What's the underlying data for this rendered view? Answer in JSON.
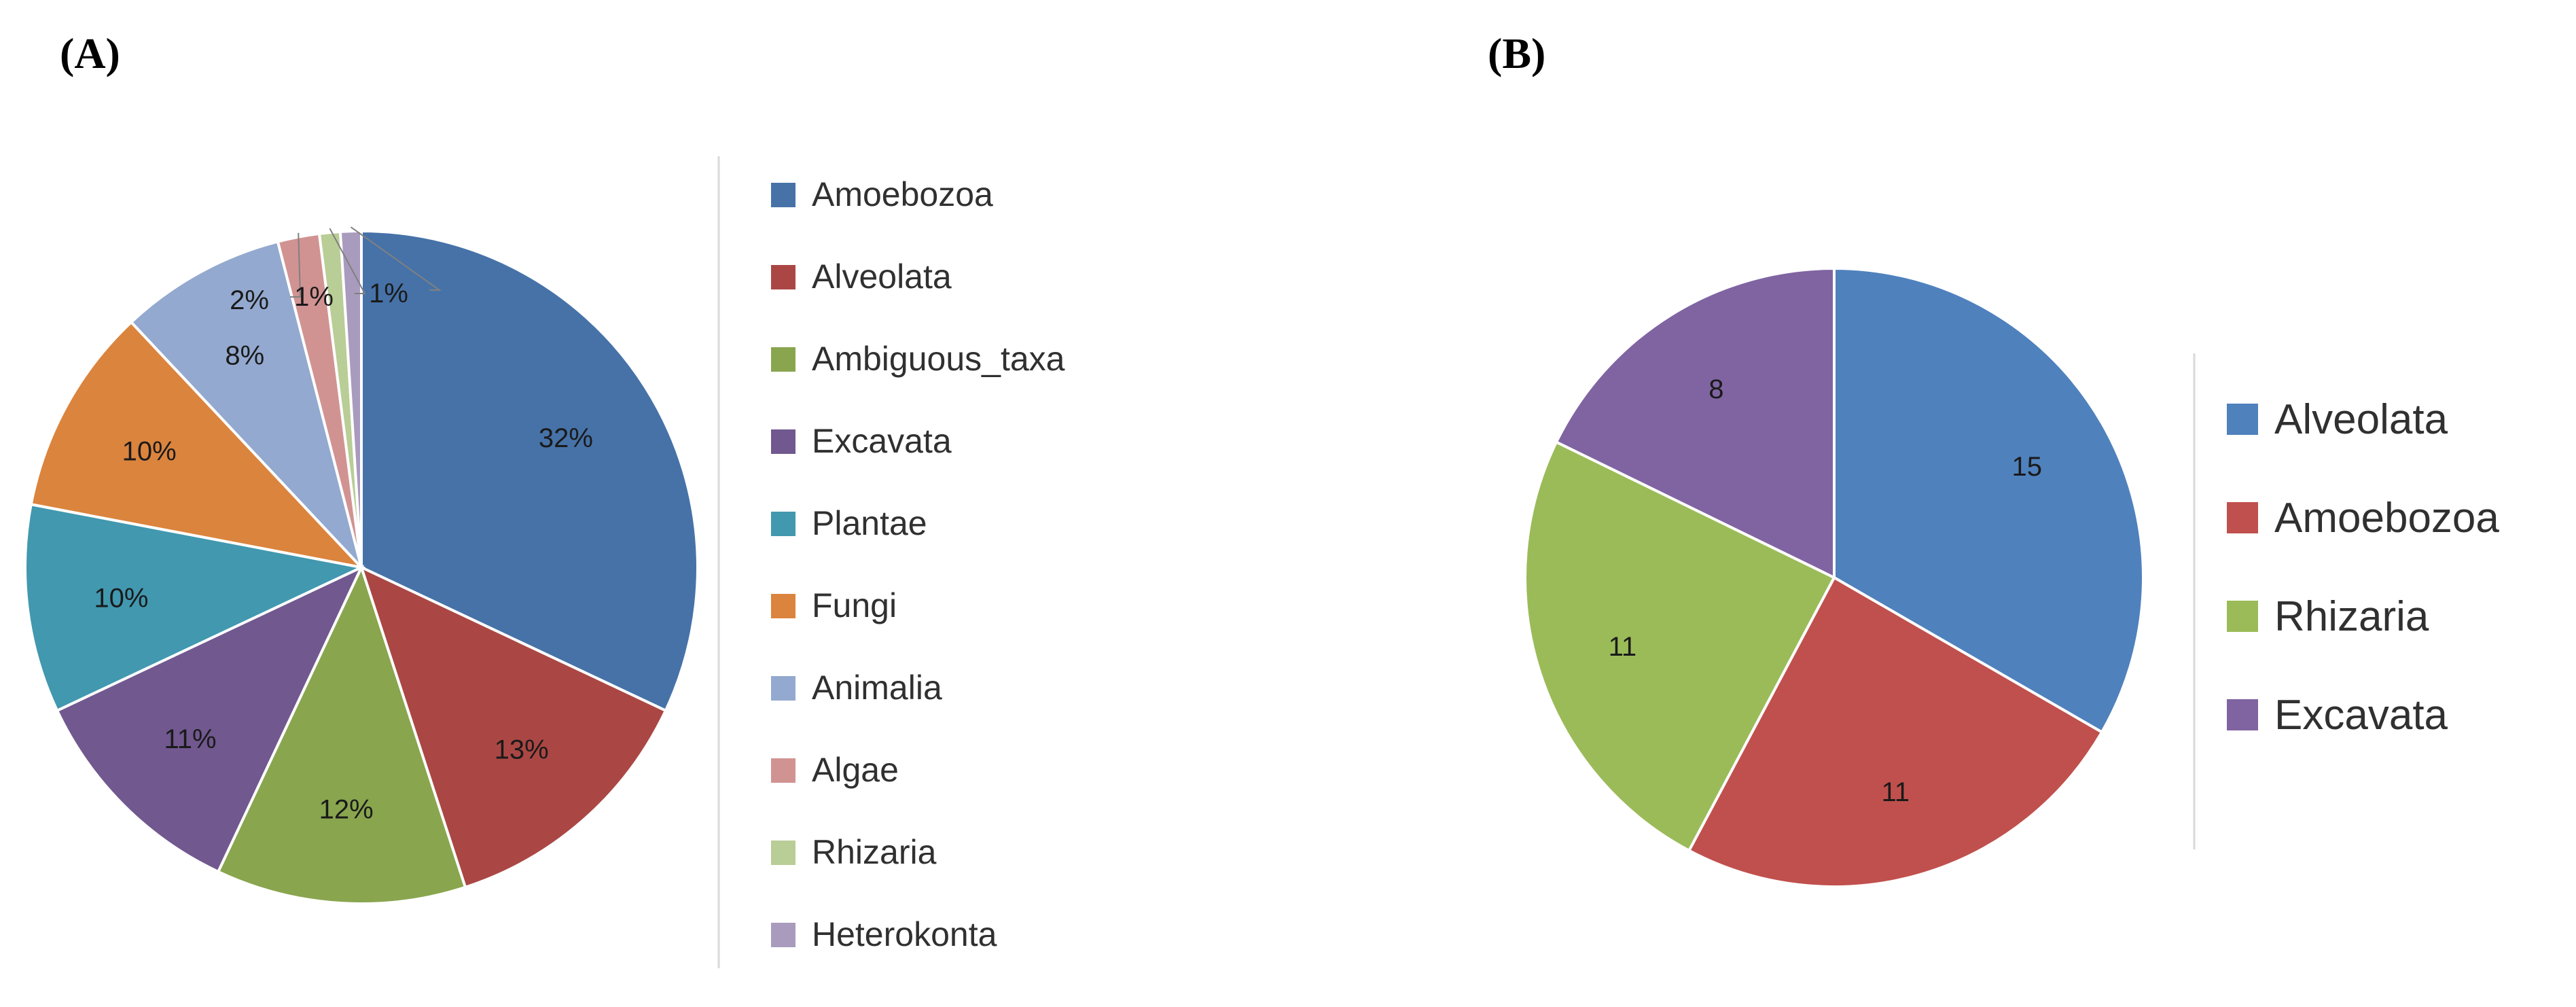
{
  "panels": {
    "a_label": "(A)",
    "b_label": "(B)"
  },
  "chart_data": [
    {
      "type": "pie",
      "panel": "(A)",
      "categories": [
        "Amoebozoa",
        "Alveolata",
        "Ambiguous_taxa",
        "Excavata",
        "Plantae",
        "Fungi",
        "Animalia",
        "Algae",
        "Rhizaria",
        "Heterokonta"
      ],
      "values": [
        32,
        13,
        12,
        11,
        10,
        10,
        8,
        2,
        1,
        1
      ],
      "data_labels": [
        "32%",
        "13%",
        "12%",
        "11%",
        "10%",
        "10%",
        "8%",
        "2%",
        "1%",
        "1%"
      ],
      "colors": [
        "#4672A8",
        "#AA4744",
        "#89A54E",
        "#71588F",
        "#4198AF",
        "#DB843D",
        "#93A9CF",
        "#D19392",
        "#B9CD96",
        "#A99BBD"
      ],
      "legend_position": "right",
      "start_angle_deg": 0,
      "direction": "clockwise"
    },
    {
      "type": "pie",
      "panel": "(B)",
      "categories": [
        "Alveolata",
        "Amoebozoa",
        "Rhizaria",
        "Excavata"
      ],
      "values": [
        15,
        11,
        11,
        8
      ],
      "data_labels": [
        "15",
        "11",
        "11",
        "8"
      ],
      "colors": [
        "#4F81BD",
        "#C0504D",
        "#9BBB59",
        "#8064A2"
      ],
      "legend_position": "right",
      "start_angle_deg": 0,
      "direction": "clockwise"
    }
  ]
}
